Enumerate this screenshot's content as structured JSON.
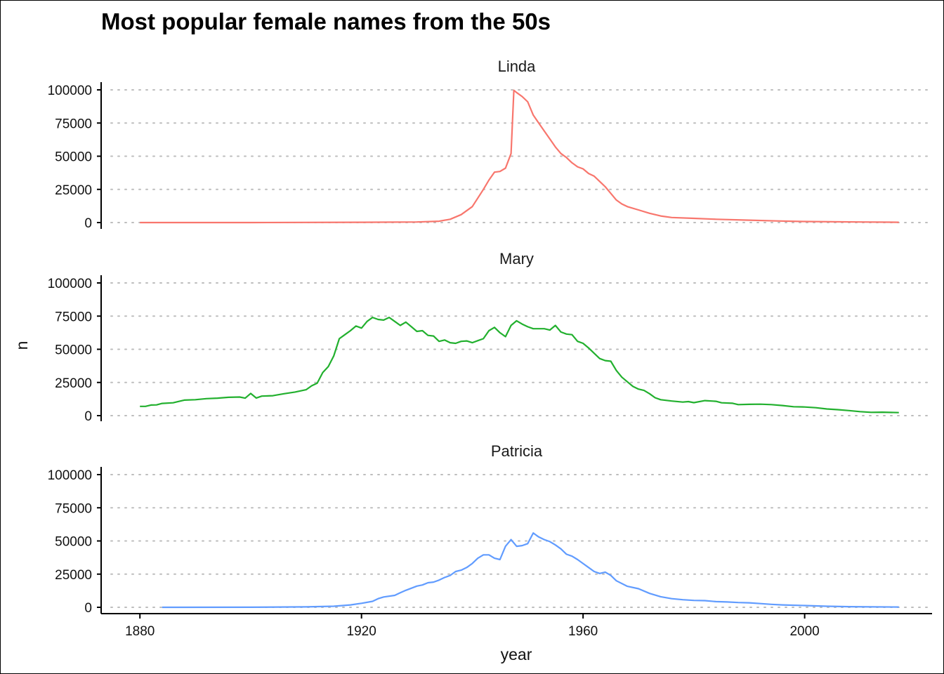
{
  "chart_data": {
    "type": "line",
    "title": "Most popular female names from the 50s",
    "xlabel": "year",
    "ylabel": "n",
    "xlim": [
      1873,
      2023
    ],
    "ylim": [
      0,
      100000
    ],
    "x_ticks": [
      1880,
      1920,
      1960,
      2000
    ],
    "y_ticks": [
      0,
      25000,
      50000,
      75000,
      100000
    ],
    "y_tick_labels": [
      "0",
      "25000",
      "50000",
      "75000",
      "100000"
    ],
    "x_tick_labels": [
      "1880",
      "1920",
      "1960",
      "2000"
    ],
    "grid": "horizontal-dotted",
    "legend": "none",
    "facets": [
      {
        "name": "Linda",
        "color": "#F8766D",
        "points": [
          [
            1880,
            0
          ],
          [
            1900,
            0
          ],
          [
            1920,
            200
          ],
          [
            1930,
            400
          ],
          [
            1934,
            1000
          ],
          [
            1936,
            2500
          ],
          [
            1938,
            6000
          ],
          [
            1940,
            12000
          ],
          [
            1942,
            25000
          ],
          [
            1943,
            32000
          ],
          [
            1944,
            38000
          ],
          [
            1945,
            38500
          ],
          [
            1946,
            41000
          ],
          [
            1947,
            52000
          ],
          [
            1947.5,
            99700
          ],
          [
            1948,
            98000
          ],
          [
            1949,
            95000
          ],
          [
            1950,
            91000
          ],
          [
            1951,
            81000
          ],
          [
            1952,
            75000
          ],
          [
            1953,
            69000
          ],
          [
            1954,
            63000
          ],
          [
            1955,
            57000
          ],
          [
            1956,
            52000
          ],
          [
            1957,
            49000
          ],
          [
            1958,
            45000
          ],
          [
            1959,
            42000
          ],
          [
            1960,
            40500
          ],
          [
            1961,
            37000
          ],
          [
            1962,
            35000
          ],
          [
            1963,
            31000
          ],
          [
            1964,
            27000
          ],
          [
            1965,
            22000
          ],
          [
            1966,
            17000
          ],
          [
            1967,
            14000
          ],
          [
            1968,
            12000
          ],
          [
            1970,
            9500
          ],
          [
            1972,
            7000
          ],
          [
            1974,
            5000
          ],
          [
            1976,
            3800
          ],
          [
            1980,
            3200
          ],
          [
            1984,
            2500
          ],
          [
            1990,
            1800
          ],
          [
            1995,
            1200
          ],
          [
            2000,
            800
          ],
          [
            2010,
            400
          ],
          [
            2017,
            200
          ]
        ]
      },
      {
        "name": "Mary",
        "color": "#22B02E",
        "points": [
          [
            1880,
            7000
          ],
          [
            1881,
            7000
          ],
          [
            1882,
            8000
          ],
          [
            1883,
            8100
          ],
          [
            1884,
            9200
          ],
          [
            1886,
            9700
          ],
          [
            1888,
            11700
          ],
          [
            1890,
            12000
          ],
          [
            1892,
            12800
          ],
          [
            1894,
            13200
          ],
          [
            1896,
            13800
          ],
          [
            1898,
            14000
          ],
          [
            1899,
            13200
          ],
          [
            1900,
            16700
          ],
          [
            1901,
            13300
          ],
          [
            1902,
            14700
          ],
          [
            1904,
            15000
          ],
          [
            1906,
            16500
          ],
          [
            1908,
            17800
          ],
          [
            1910,
            19500
          ],
          [
            1911,
            22500
          ],
          [
            1912,
            24500
          ],
          [
            1913,
            32500
          ],
          [
            1914,
            37000
          ],
          [
            1915,
            45000
          ],
          [
            1916,
            58000
          ],
          [
            1917,
            61000
          ],
          [
            1918,
            64000
          ],
          [
            1919,
            67500
          ],
          [
            1920,
            66000
          ],
          [
            1921,
            71000
          ],
          [
            1922,
            74000
          ],
          [
            1923,
            72500
          ],
          [
            1924,
            72000
          ],
          [
            1925,
            74000
          ],
          [
            1926,
            71000
          ],
          [
            1927,
            68000
          ],
          [
            1928,
            70500
          ],
          [
            1929,
            67000
          ],
          [
            1930,
            63500
          ],
          [
            1931,
            64000
          ],
          [
            1932,
            60500
          ],
          [
            1933,
            60000
          ],
          [
            1934,
            56000
          ],
          [
            1935,
            57000
          ],
          [
            1936,
            55000
          ],
          [
            1937,
            54500
          ],
          [
            1938,
            56000
          ],
          [
            1939,
            56300
          ],
          [
            1940,
            55000
          ],
          [
            1941,
            56500
          ],
          [
            1942,
            58000
          ],
          [
            1943,
            64000
          ],
          [
            1944,
            66500
          ],
          [
            1945,
            62500
          ],
          [
            1946,
            59500
          ],
          [
            1947,
            68000
          ],
          [
            1948,
            71500
          ],
          [
            1949,
            69000
          ],
          [
            1950,
            67000
          ],
          [
            1951,
            65500
          ],
          [
            1952,
            65500
          ],
          [
            1953,
            65500
          ],
          [
            1954,
            64500
          ],
          [
            1955,
            68000
          ],
          [
            1956,
            63000
          ],
          [
            1957,
            61500
          ],
          [
            1958,
            61000
          ],
          [
            1959,
            56000
          ],
          [
            1960,
            54500
          ],
          [
            1961,
            51000
          ],
          [
            1962,
            47000
          ],
          [
            1963,
            43000
          ],
          [
            1964,
            41500
          ],
          [
            1965,
            41000
          ],
          [
            1966,
            34000
          ],
          [
            1967,
            29000
          ],
          [
            1968,
            25500
          ],
          [
            1969,
            22000
          ],
          [
            1970,
            20000
          ],
          [
            1971,
            19000
          ],
          [
            1972,
            16500
          ],
          [
            1973,
            13500
          ],
          [
            1974,
            12000
          ],
          [
            1976,
            11000
          ],
          [
            1978,
            10200
          ],
          [
            1979,
            10600
          ],
          [
            1980,
            9800
          ],
          [
            1982,
            11300
          ],
          [
            1984,
            10800
          ],
          [
            1985,
            9700
          ],
          [
            1987,
            9300
          ],
          [
            1988,
            8300
          ],
          [
            1990,
            8500
          ],
          [
            1992,
            8600
          ],
          [
            1994,
            8300
          ],
          [
            1996,
            7600
          ],
          [
            1998,
            6700
          ],
          [
            2000,
            6500
          ],
          [
            2002,
            6000
          ],
          [
            2004,
            5000
          ],
          [
            2006,
            4500
          ],
          [
            2008,
            3800
          ],
          [
            2010,
            3000
          ],
          [
            2012,
            2500
          ],
          [
            2014,
            2600
          ],
          [
            2017,
            2300
          ]
        ]
      },
      {
        "name": "Patricia",
        "color": "#619CFF",
        "points": [
          [
            1884,
            0
          ],
          [
            1900,
            50
          ],
          [
            1910,
            300
          ],
          [
            1915,
            800
          ],
          [
            1918,
            1800
          ],
          [
            1920,
            3000
          ],
          [
            1922,
            4500
          ],
          [
            1923,
            6500
          ],
          [
            1924,
            7800
          ],
          [
            1926,
            9000
          ],
          [
            1927,
            11000
          ],
          [
            1928,
            12800
          ],
          [
            1930,
            16000
          ],
          [
            1931,
            16800
          ],
          [
            1932,
            18500
          ],
          [
            1933,
            19000
          ],
          [
            1934,
            20500
          ],
          [
            1935,
            22500
          ],
          [
            1936,
            24000
          ],
          [
            1937,
            27000
          ],
          [
            1938,
            28000
          ],
          [
            1939,
            30000
          ],
          [
            1940,
            33000
          ],
          [
            1941,
            37000
          ],
          [
            1942,
            39500
          ],
          [
            1943,
            39500
          ],
          [
            1944,
            37000
          ],
          [
            1945,
            36000
          ],
          [
            1946,
            46000
          ],
          [
            1947,
            51000
          ],
          [
            1948,
            46000
          ],
          [
            1949,
            46500
          ],
          [
            1950,
            48000
          ],
          [
            1951,
            56000
          ],
          [
            1952,
            53000
          ],
          [
            1953,
            51000
          ],
          [
            1954,
            49500
          ],
          [
            1955,
            47000
          ],
          [
            1956,
            44000
          ],
          [
            1957,
            40000
          ],
          [
            1958,
            38500
          ],
          [
            1959,
            36000
          ],
          [
            1960,
            33000
          ],
          [
            1961,
            30000
          ],
          [
            1962,
            27000
          ],
          [
            1963,
            25500
          ],
          [
            1964,
            26500
          ],
          [
            1965,
            24000
          ],
          [
            1966,
            20000
          ],
          [
            1968,
            15800
          ],
          [
            1970,
            14000
          ],
          [
            1972,
            10500
          ],
          [
            1974,
            8000
          ],
          [
            1976,
            6500
          ],
          [
            1978,
            5700
          ],
          [
            1980,
            5200
          ],
          [
            1982,
            5000
          ],
          [
            1984,
            4300
          ],
          [
            1986,
            4000
          ],
          [
            1988,
            3600
          ],
          [
            1990,
            3400
          ],
          [
            1992,
            2800
          ],
          [
            1994,
            2200
          ],
          [
            1996,
            1800
          ],
          [
            2000,
            1300
          ],
          [
            2004,
            800
          ],
          [
            2008,
            500
          ],
          [
            2012,
            300
          ],
          [
            2017,
            200
          ]
        ]
      }
    ]
  }
}
